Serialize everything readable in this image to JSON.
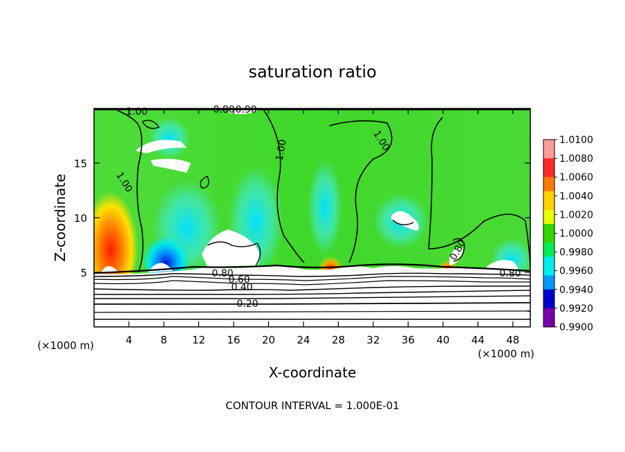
{
  "chart_data": {
    "type": "heatmap",
    "title": "saturation ratio",
    "xlabel": "X-coordinate",
    "ylabel": "Z-coordinate",
    "x_unit": "(×1000 m)",
    "y_unit": "(×1000 m)",
    "xlim": [
      0,
      50
    ],
    "ylim": [
      0,
      20
    ],
    "x_ticks": [
      "4",
      "8",
      "12",
      "16",
      "20",
      "24",
      "28",
      "32",
      "36",
      "40",
      "44",
      "48"
    ],
    "y_ticks": [
      "5",
      "10",
      "15"
    ],
    "colorbar": {
      "labels": [
        "1.0100",
        "1.0080",
        "1.0060",
        "1.0040",
        "1.0020",
        "1.0000",
        "0.9980",
        "0.9960",
        "0.9940",
        "0.9920",
        "0.9900"
      ],
      "colors": [
        "#ff9a9a",
        "#ff2a2a",
        "#ff7a00",
        "#ffcf00",
        "#e8ff00",
        "#33d600",
        "#00ee55",
        "#00eeee",
        "#0099ff",
        "#0000cc",
        "#7700aa"
      ]
    },
    "contour_labels": [
      "1.00",
      "1.00",
      "1.00",
      "1.00",
      "0.90",
      "0.80",
      "0.60",
      "0.40",
      "0.20",
      "0.80",
      "0.80",
      "0.80"
    ],
    "footer": "CONTOUR INTERVAL = 1.000E-01"
  }
}
